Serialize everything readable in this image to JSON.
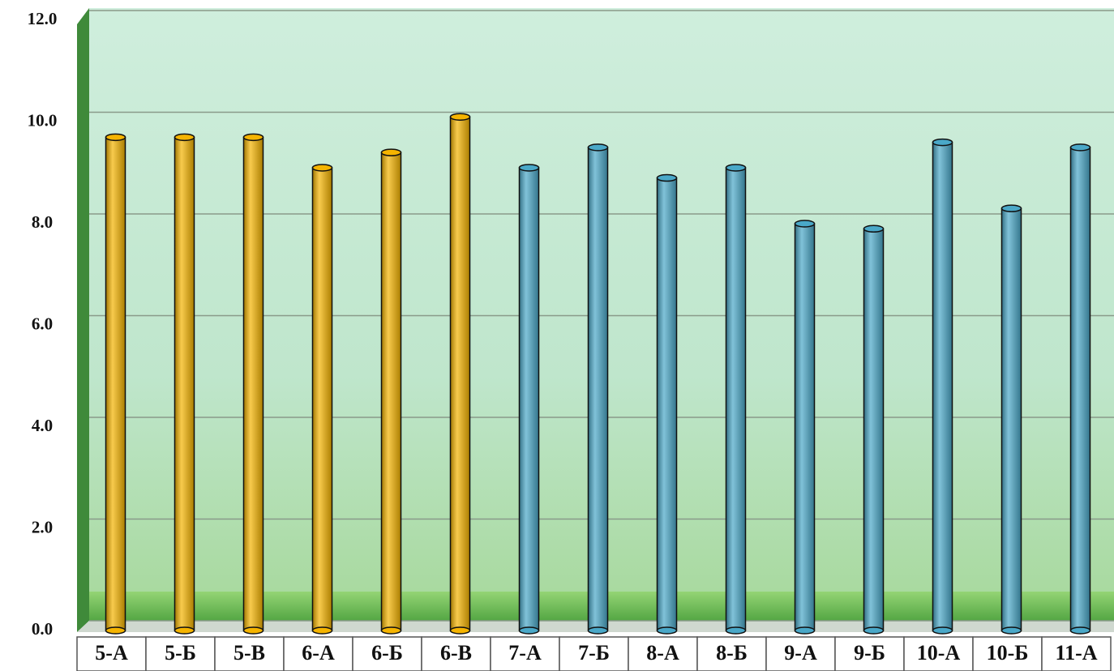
{
  "chart_data": {
    "type": "bar",
    "categories": [
      "5-А",
      "5-Б",
      "5-В",
      "6-А",
      "6-Б",
      "6-В",
      "7-А",
      "7-Б",
      "8-А",
      "8-Б",
      "9-А",
      "9-Б",
      "10-А",
      "10-Б",
      "11-А"
    ],
    "values": [
      9.7,
      9.7,
      9.7,
      9.1,
      9.4,
      10.1,
      9.1,
      9.5,
      8.9,
      9.1,
      8.0,
      7.9,
      9.6,
      8.3,
      9.5
    ],
    "colors": [
      "#f5b400",
      "#f5b400",
      "#f5b400",
      "#f5b400",
      "#f5b400",
      "#f5b400",
      "#4aa8c8",
      "#4aa8c8",
      "#4aa8c8",
      "#4aa8c8",
      "#4aa8c8",
      "#4aa8c8",
      "#4aa8c8",
      "#4aa8c8",
      "#4aa8c8"
    ],
    "ylim": [
      0,
      12
    ],
    "yticks": [
      {
        "value": 0,
        "label": "0.0"
      },
      {
        "value": 2,
        "label": "2.0"
      },
      {
        "value": 4,
        "label": "4.0"
      },
      {
        "value": 6,
        "label": "6.0"
      },
      {
        "value": 8,
        "label": "8.0"
      },
      {
        "value": 10,
        "label": "10.0"
      },
      {
        "value": 12,
        "label": "12.0"
      }
    ],
    "grid": true
  }
}
